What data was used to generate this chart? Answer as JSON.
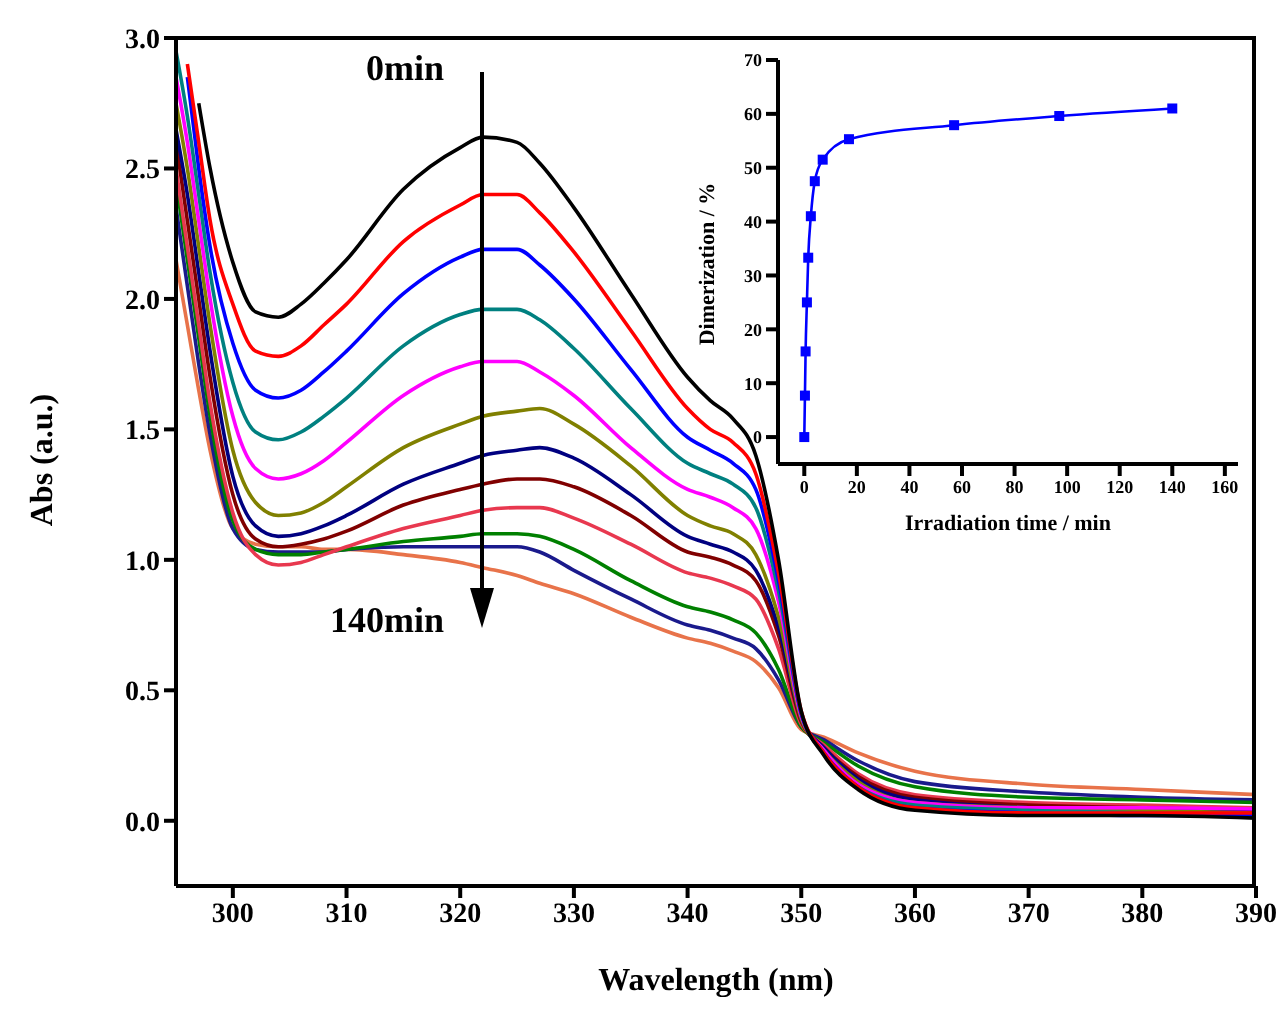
{
  "chart_data": [
    {
      "type": "line",
      "xlabel": "Wavelength (nm)",
      "ylabel": "Abs (a.u.)",
      "annotations": [
        "0min",
        "140min"
      ],
      "marker": "none",
      "legend": false,
      "grid": false,
      "x": [
        295,
        296,
        297,
        298,
        300,
        302,
        304,
        306,
        308,
        310,
        315,
        320,
        322,
        325,
        327,
        330,
        335,
        340,
        342,
        344,
        346,
        348,
        350,
        352,
        355,
        360,
        370,
        380,
        390
      ],
      "xlim": [
        295,
        390
      ],
      "xticks": [
        300,
        310,
        320,
        330,
        340,
        350,
        360,
        370,
        380,
        390
      ],
      "ylim": [
        -0.25,
        3.0
      ],
      "yticks": [
        {
          "value": 0,
          "label": "0.0"
        },
        {
          "value": 0.5,
          "label": "0.5"
        },
        {
          "value": 1,
          "label": "1.0"
        },
        {
          "value": 1.5,
          "label": "1.5"
        },
        {
          "value": 2,
          "label": "2.0"
        },
        {
          "value": 2.5,
          "label": "2.5"
        },
        {
          "value": 3,
          "label": "3.0"
        }
      ],
      "series": [
        {
          "color": "#000000",
          "values": [
            null,
            null,
            2.75,
            2.5,
            2.14,
            1.95,
            1.93,
            1.98,
            2.06,
            2.15,
            2.42,
            2.58,
            2.62,
            2.6,
            2.52,
            2.35,
            2.02,
            1.7,
            1.61,
            1.54,
            1.4,
            1.0,
            0.42,
            0.25,
            0.12,
            0.04,
            0.02,
            0.02,
            0.01
          ]
        },
        {
          "color": "#ff0000",
          "values": [
            null,
            2.9,
            2.6,
            2.3,
            1.98,
            1.8,
            1.78,
            1.82,
            1.9,
            1.98,
            2.22,
            2.36,
            2.4,
            2.4,
            2.33,
            2.18,
            1.88,
            1.58,
            1.5,
            1.45,
            1.33,
            0.95,
            0.42,
            0.26,
            0.13,
            0.05,
            0.03,
            0.03,
            0.03
          ]
        },
        {
          "color": "#0000ff",
          "values": [
            null,
            2.85,
            2.5,
            2.2,
            1.83,
            1.65,
            1.62,
            1.65,
            1.72,
            1.8,
            2.02,
            2.16,
            2.19,
            2.19,
            2.13,
            2.0,
            1.73,
            1.47,
            1.42,
            1.37,
            1.27,
            0.92,
            0.41,
            0.26,
            0.13,
            0.05,
            0.03,
            0.02,
            0.02
          ]
        },
        {
          "color": "#008080",
          "values": [
            2.95,
            2.7,
            2.4,
            2.1,
            1.68,
            1.49,
            1.46,
            1.49,
            1.55,
            1.62,
            1.82,
            1.94,
            1.96,
            1.96,
            1.92,
            1.81,
            1.58,
            1.37,
            1.33,
            1.29,
            1.2,
            0.88,
            0.41,
            0.26,
            0.13,
            0.06,
            0.04,
            0.03,
            0.02
          ]
        },
        {
          "color": "#ff00ff",
          "values": [
            2.85,
            2.6,
            2.3,
            2.0,
            1.55,
            1.35,
            1.31,
            1.33,
            1.38,
            1.45,
            1.63,
            1.74,
            1.76,
            1.76,
            1.72,
            1.63,
            1.43,
            1.27,
            1.24,
            1.2,
            1.12,
            0.84,
            0.4,
            0.27,
            0.14,
            0.07,
            0.05,
            0.05,
            0.045
          ]
        },
        {
          "color": "#808000",
          "values": [
            2.75,
            2.5,
            2.2,
            1.9,
            1.42,
            1.22,
            1.17,
            1.18,
            1.22,
            1.28,
            1.43,
            1.52,
            1.55,
            1.57,
            1.58,
            1.52,
            1.36,
            1.17,
            1.13,
            1.1,
            1.02,
            0.78,
            0.39,
            0.27,
            0.15,
            0.07,
            0.05,
            0.04,
            0.03
          ]
        },
        {
          "color": "#000080",
          "values": [
            2.65,
            2.4,
            2.1,
            1.8,
            1.32,
            1.13,
            1.09,
            1.1,
            1.13,
            1.17,
            1.29,
            1.37,
            1.4,
            1.42,
            1.43,
            1.39,
            1.25,
            1.09,
            1.06,
            1.03,
            0.96,
            0.74,
            0.39,
            0.28,
            0.16,
            0.08,
            0.05,
            0.04,
            0.04
          ]
        },
        {
          "color": "#800000",
          "values": [
            2.6,
            2.3,
            2.0,
            1.7,
            1.25,
            1.08,
            1.05,
            1.06,
            1.08,
            1.11,
            1.21,
            1.27,
            1.29,
            1.31,
            1.31,
            1.28,
            1.17,
            1.03,
            1.01,
            0.98,
            0.92,
            0.71,
            0.38,
            0.28,
            0.17,
            0.09,
            0.06,
            0.05,
            0.04
          ]
        },
        {
          "color": "#e8384f",
          "values": [
            2.5,
            2.2,
            1.9,
            1.6,
            1.18,
            1.02,
            0.98,
            0.99,
            1.02,
            1.05,
            1.12,
            1.17,
            1.19,
            1.2,
            1.2,
            1.16,
            1.06,
            0.95,
            0.93,
            0.9,
            0.85,
            0.66,
            0.37,
            0.29,
            0.18,
            0.1,
            0.07,
            0.06,
            0.05
          ]
        },
        {
          "color": "#008000",
          "values": [
            2.45,
            2.15,
            1.85,
            1.55,
            1.15,
            1.04,
            1.02,
            1.02,
            1.03,
            1.04,
            1.07,
            1.09,
            1.1,
            1.1,
            1.09,
            1.04,
            0.92,
            0.82,
            0.8,
            0.77,
            0.72,
            0.58,
            0.36,
            0.3,
            0.21,
            0.13,
            0.09,
            0.08,
            0.07
          ]
        },
        {
          "color": "#1a1a8c",
          "values": [
            2.35,
            2.05,
            1.75,
            1.48,
            1.12,
            1.04,
            1.03,
            1.03,
            1.03,
            1.04,
            1.05,
            1.05,
            1.05,
            1.05,
            1.03,
            0.96,
            0.85,
            0.75,
            0.73,
            0.7,
            0.66,
            0.54,
            0.36,
            0.31,
            0.23,
            0.15,
            0.11,
            0.09,
            0.08
          ]
        },
        {
          "color": "#e8734a",
          "values": [
            2.15,
            1.9,
            1.65,
            1.42,
            1.12,
            1.06,
            1.05,
            1.05,
            1.04,
            1.04,
            1.02,
            0.99,
            0.97,
            0.94,
            0.91,
            0.87,
            0.78,
            0.7,
            0.68,
            0.65,
            0.61,
            0.51,
            0.35,
            0.32,
            0.26,
            0.19,
            0.14,
            0.12,
            0.1
          ]
        }
      ]
    },
    {
      "type": "line",
      "xlabel": "Irradiation time / min",
      "ylabel": "Dimerization / %",
      "marker": "square",
      "legend": false,
      "grid": false,
      "x": [
        0,
        0.25,
        0.5,
        1,
        1.5,
        2.5,
        4,
        7,
        17,
        57,
        97,
        140
      ],
      "xlim": [
        -10,
        165
      ],
      "xticks": [
        0,
        20,
        40,
        60,
        80,
        100,
        120,
        140,
        160
      ],
      "ylim": [
        -5,
        70
      ],
      "yticks": [
        0,
        10,
        20,
        30,
        40,
        50,
        60,
        70
      ],
      "series": [
        {
          "color": "#0000ff",
          "values": [
            0,
            7.7,
            15.9,
            25,
            33.3,
            41,
            47.5,
            51.5,
            55.3,
            57.9,
            59.6,
            61
          ]
        }
      ]
    }
  ]
}
